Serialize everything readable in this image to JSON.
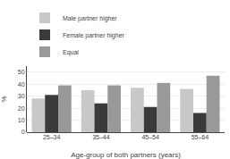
{
  "chart_data": {
    "type": "bar",
    "categories": [
      "25–34",
      "35–44",
      "45–54",
      "55–64"
    ],
    "series": [
      {
        "name": "Male partner higher",
        "color": "#c8c8c8",
        "values": [
          28,
          35,
          37,
          36
        ]
      },
      {
        "name": "Female partner higher",
        "color": "#3a3a3a",
        "values": [
          31,
          24,
          21,
          16
        ]
      },
      {
        "name": "Equal",
        "color": "#999999",
        "values": [
          39,
          39,
          41,
          47
        ]
      }
    ],
    "xlabel": "Age-group of both partners (years)",
    "ylabel": "%",
    "ylim": [
      0,
      55
    ],
    "yticks": [
      0,
      10,
      20,
      30,
      40,
      50
    ],
    "grid": true,
    "legend": "upper left"
  }
}
